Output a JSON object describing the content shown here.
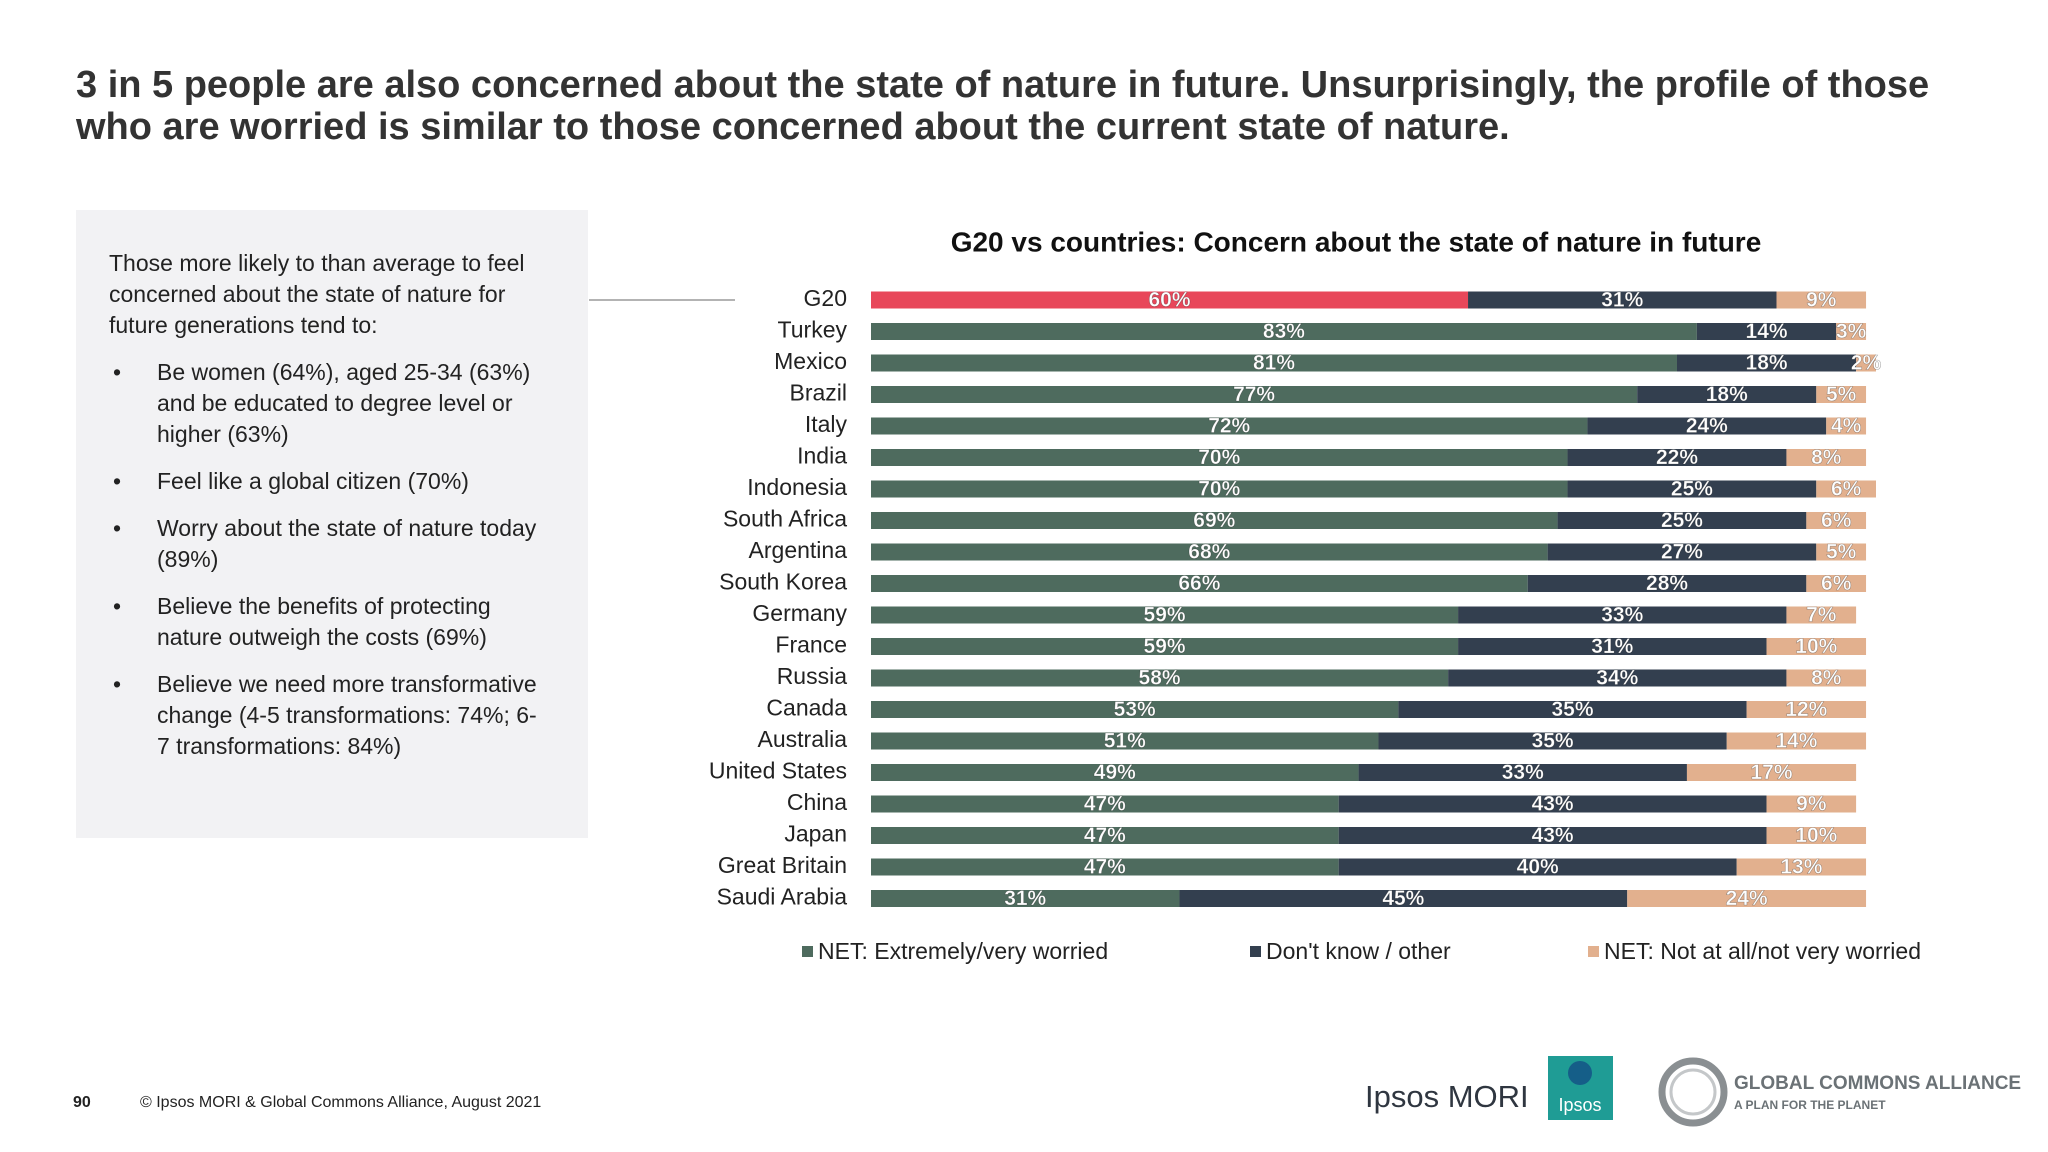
{
  "title": "3 in 5 people are also concerned about the state of nature in future. Unsurprisingly, the profile of those who are worried is similar to those concerned about the current state of nature.",
  "sidebar": {
    "intro": "Those more likely to than average to feel concerned about the state of nature for future generations tend to:",
    "bullets": [
      "Be women (64%), aged 25-34 (63%) and be educated to degree level or higher (63%)",
      "Feel like a global citizen (70%)",
      "Worry about the state of nature today (89%)",
      "Believe the benefits of protecting nature outweigh the costs (69%)",
      "Believe we need more transformative change (4-5 transformations: 74%; 6-7 transformations: 84%)"
    ]
  },
  "chart_data": {
    "type": "stacked-horizontal-bar",
    "title": "G20 vs countries: Concern about the state of nature in future",
    "categories": [
      "G20",
      "Turkey",
      "Mexico",
      "Brazil",
      "Italy",
      "India",
      "Indonesia",
      "South Africa",
      "Argentina",
      "South Korea",
      "Germany",
      "France",
      "Russia",
      "Canada",
      "Australia",
      "United States",
      "China",
      "Japan",
      "Great Britain",
      "Saudi Arabia"
    ],
    "xlim": [
      0,
      101
    ],
    "series": [
      {
        "name": "NET: Extremely/very worried",
        "color": "#4e6b5e",
        "point_colors": [
          "#e8475a",
          "#4e6b5e",
          "#4e6b5e",
          "#4e6b5e",
          "#4e6b5e",
          "#4e6b5e",
          "#4e6b5e",
          "#4e6b5e",
          "#4e6b5e",
          "#4e6b5e",
          "#4e6b5e",
          "#4e6b5e",
          "#4e6b5e",
          "#4e6b5e",
          "#4e6b5e",
          "#4e6b5e",
          "#4e6b5e",
          "#4e6b5e",
          "#4e6b5e",
          "#4e6b5e"
        ],
        "values": [
          60,
          83,
          81,
          77,
          72,
          70,
          70,
          69,
          68,
          66,
          59,
          59,
          58,
          53,
          51,
          49,
          47,
          47,
          47,
          31
        ],
        "value_labels": [
          "60%",
          "83%",
          "81%",
          "77%",
          "72%",
          "70%",
          "70%",
          "69%",
          "68%",
          "66%",
          "59%",
          "59%",
          "58%",
          "53%",
          "51%",
          "49%",
          "47%",
          "47%",
          "47%",
          "31%"
        ]
      },
      {
        "name": "Don't know / other",
        "color": "#333f4f",
        "values": [
          31,
          14,
          18,
          18,
          24,
          22,
          25,
          25,
          27,
          28,
          33,
          31,
          34,
          35,
          35,
          33,
          43,
          43,
          40,
          45
        ],
        "value_labels": [
          "31%",
          "14%",
          "18%",
          "18%",
          "24%",
          "22%",
          "25%",
          "25%",
          "27%",
          "28%",
          "33%",
          "31%",
          "34%",
          "35%",
          "35%",
          "33%",
          "43%",
          "43%",
          "40%",
          "45%"
        ]
      },
      {
        "name": "NET: Not at all/not very worried",
        "color": "#e2b08e",
        "values": [
          9,
          3,
          2,
          5,
          4,
          8,
          6,
          6,
          5,
          6,
          7,
          10,
          8,
          12,
          14,
          17,
          9,
          10,
          13,
          24
        ],
        "value_labels": [
          "9%",
          "3%",
          "2%",
          "5%",
          "4%",
          "8%",
          "6%",
          "6%",
          "5%",
          "6%",
          "7%",
          "10%",
          "8%",
          "12%",
          "14%",
          "17%",
          "9%",
          "10%",
          "13%",
          "24%"
        ]
      }
    ]
  },
  "footer": {
    "page": "90",
    "copyright": "© Ipsos MORI & Global Commons Alliance, August 2021"
  },
  "logos": {
    "ipsos_mori": "Ipsos MORI",
    "ipsos": "Ipsos",
    "gca_name": "GLOBAL COMMONS ALLIANCE",
    "gca_tagline": "A PLAN FOR THE PLANET"
  }
}
